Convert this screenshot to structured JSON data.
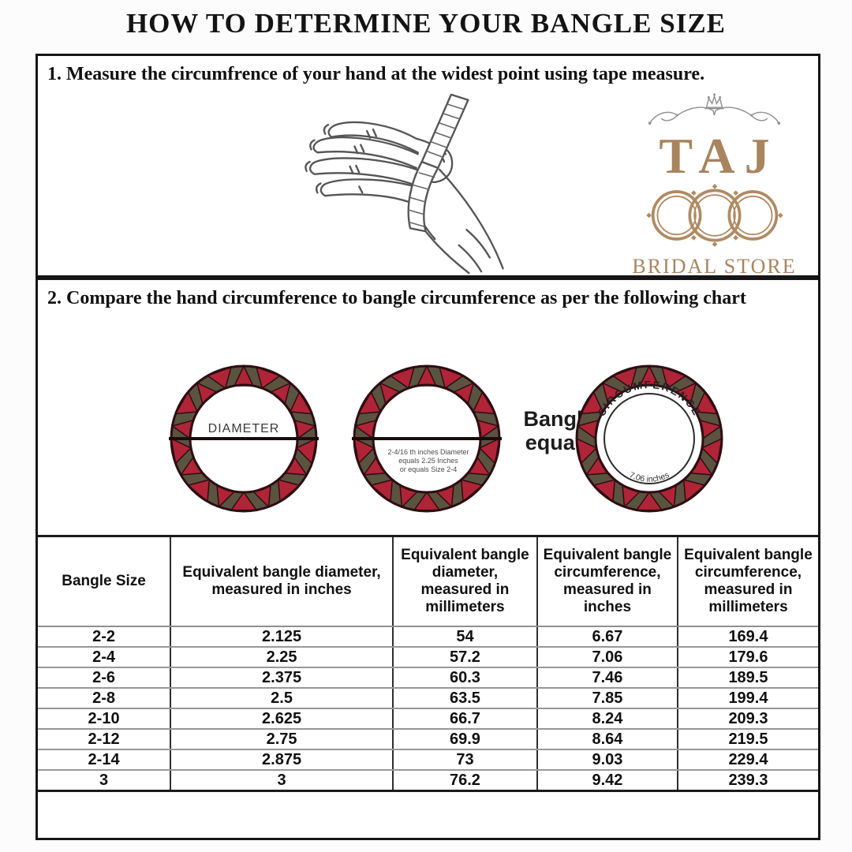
{
  "title": "HOW TO DETERMINE YOUR BANGLE SIZE",
  "steps": {
    "step1": "1. Measure the circumfrence of your hand at the widest point using tape measure.",
    "step2": "2. Compare the hand circumference to bangle circumference as per the following chart"
  },
  "logo": {
    "name": "TAJ",
    "subtitle": "BRIDAL STORE",
    "color": "#a8845f"
  },
  "diagram": {
    "bangle1_label": "DIAMETER",
    "bangle2_caption": [
      "2-4/16 th inches Diameter",
      "equals 2.25 Inches",
      "or equals Size 2-4"
    ],
    "equals_label": [
      "Bangle",
      "equals"
    ],
    "bangle3_top_label": "CIRCUMFERENCE",
    "bangle3_bottom_label": "7.06 inches",
    "colors": {
      "red": "#b02437",
      "olive": "#5a5340",
      "outline": "#2d0d12"
    }
  },
  "table": {
    "headers": [
      "Bangle Size",
      "Equivalent bangle diameter, measured in inches",
      "Equivalent bangle diameter, measured in millimeters",
      "Equivalent bangle circumference, measured in inches",
      "Equivalent bangle circumference, measured in millimeters"
    ],
    "column_widths": [
      "17%",
      "28.5%",
      "18.5%",
      "18%",
      "18%"
    ],
    "rows": [
      [
        "2-2",
        "2.125",
        "54",
        "6.67",
        "169.4"
      ],
      [
        "2-4",
        "2.25",
        "57.2",
        "7.06",
        "179.6"
      ],
      [
        "2-6",
        "2.375",
        "60.3",
        "7.46",
        "189.5"
      ],
      [
        "2-8",
        "2.5",
        "63.5",
        "7.85",
        "199.4"
      ],
      [
        "2-10",
        "2.625",
        "66.7",
        "8.24",
        "209.3"
      ],
      [
        "2-12",
        "2.75",
        "69.9",
        "8.64",
        "219.5"
      ],
      [
        "2-14",
        "2.875",
        "73",
        "9.03",
        "229.4"
      ],
      [
        "3",
        "3",
        "76.2",
        "9.42",
        "239.3"
      ]
    ]
  }
}
